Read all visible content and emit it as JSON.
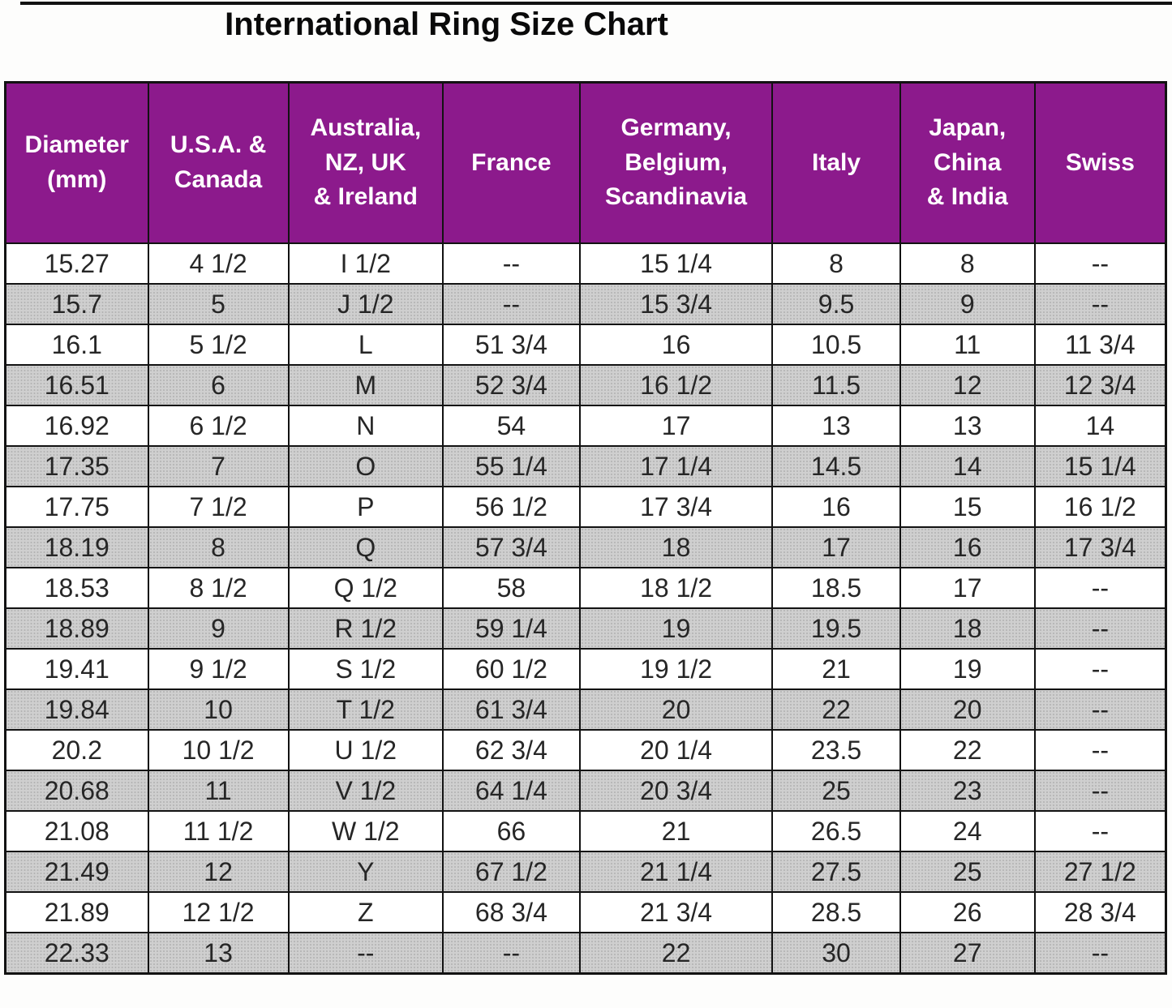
{
  "page": {
    "title": "International Ring Size Chart"
  },
  "colors": {
    "header_bg": "#8C1A8C",
    "header_text": "#FFFFFF",
    "alt_row_bg": "#CFCFCF",
    "border": "#121212",
    "cell_text": "#262626"
  },
  "chart_data": {
    "type": "table",
    "title": "International Ring Size Chart",
    "grid": true,
    "header_style": "purple band, white bold text",
    "row_striping": "even rows halftone gray, odd rows white",
    "columns": [
      "Diameter\n(mm)",
      "U.S.A. &\nCanada",
      "Australia,\nNZ, UK\n& Ireland",
      "France",
      "Germany,\nBelgium,\nScandinavia",
      "Italy",
      "Japan,\nChina\n& India",
      "Swiss"
    ],
    "rows": [
      [
        "15.27",
        "4 1/2",
        "I 1/2",
        "--",
        "15 1/4",
        "8",
        "8",
        "--"
      ],
      [
        "15.7",
        "5",
        "J 1/2",
        "--",
        "15 3/4",
        "9.5",
        "9",
        "--"
      ],
      [
        "16.1",
        "5 1/2",
        "L",
        "51 3/4",
        "16",
        "10.5",
        "11",
        "11 3/4"
      ],
      [
        "16.51",
        "6",
        "M",
        "52 3/4",
        "16 1/2",
        "11.5",
        "12",
        "12 3/4"
      ],
      [
        "16.92",
        "6 1/2",
        "N",
        "54",
        "17",
        "13",
        "13",
        "14"
      ],
      [
        "17.35",
        "7",
        "O",
        "55 1/4",
        "17 1/4",
        "14.5",
        "14",
        "15 1/4"
      ],
      [
        "17.75",
        "7 1/2",
        "P",
        "56 1/2",
        "17 3/4",
        "16",
        "15",
        "16 1/2"
      ],
      [
        "18.19",
        "8",
        "Q",
        "57 3/4",
        "18",
        "17",
        "16",
        "17 3/4"
      ],
      [
        "18.53",
        "8 1/2",
        "Q 1/2",
        "58",
        "18 1/2",
        "18.5",
        "17",
        "--"
      ],
      [
        "18.89",
        "9",
        "R 1/2",
        "59 1/4",
        "19",
        "19.5",
        "18",
        "--"
      ],
      [
        "19.41",
        "9 1/2",
        "S 1/2",
        "60 1/2",
        "19 1/2",
        "21",
        "19",
        "--"
      ],
      [
        "19.84",
        "10",
        "T 1/2",
        "61 3/4",
        "20",
        "22",
        "20",
        "--"
      ],
      [
        "20.2",
        "10 1/2",
        "U 1/2",
        "62 3/4",
        "20 1/4",
        "23.5",
        "22",
        "--"
      ],
      [
        "20.68",
        "11",
        "V 1/2",
        "64 1/4",
        "20 3/4",
        "25",
        "23",
        "--"
      ],
      [
        "21.08",
        "11 1/2",
        "W 1/2",
        "66",
        "21",
        "26.5",
        "24",
        "--"
      ],
      [
        "21.49",
        "12",
        "Y",
        "67 1/2",
        "21 1/4",
        "27.5",
        "25",
        "27 1/2"
      ],
      [
        "21.89",
        "12 1/2",
        "Z",
        "68 3/4",
        "21 3/4",
        "28.5",
        "26",
        "28 3/4"
      ],
      [
        "22.33",
        "13",
        "--",
        "--",
        "22",
        "30",
        "27",
        "--"
      ]
    ]
  }
}
